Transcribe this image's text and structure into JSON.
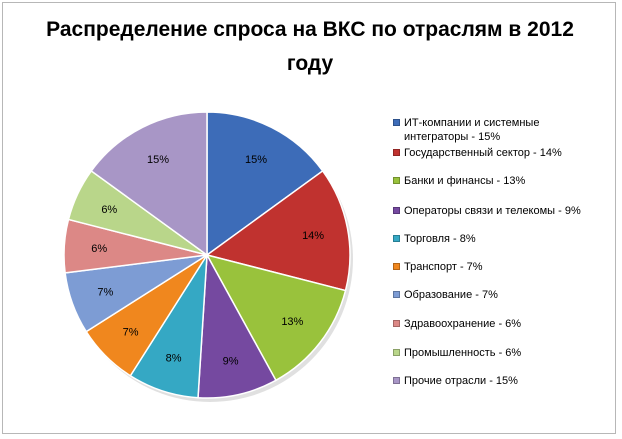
{
  "chart_data": {
    "type": "pie",
    "title": "Распределение спроса на ВКС по отраслям в 2012 году",
    "legend_position": "right",
    "slices": [
      {
        "legend": "ИТ-компании и системные интеграторы - 15%",
        "label": "15%",
        "value": 15,
        "color": "#3d6cb8"
      },
      {
        "legend": "Государственный сектор - 14%",
        "label": "14%",
        "value": 14,
        "color": "#c0322f"
      },
      {
        "legend": "Банки и финансы - 13%",
        "label": "13%",
        "value": 13,
        "color": "#99c23c"
      },
      {
        "legend": "Операторы связи и телекомы  - 9%",
        "label": "9%",
        "value": 9,
        "color": "#7549a0"
      },
      {
        "legend": "Торговля - 8%",
        "label": "8%",
        "value": 8,
        "color": "#35a8c4"
      },
      {
        "legend": "Транспорт - 7%",
        "label": "7%",
        "value": 7,
        "color": "#f0871e"
      },
      {
        "legend": "Образование - 7%",
        "label": "7%",
        "value": 7,
        "color": "#7d9cd4"
      },
      {
        "legend": "Здравоохранение - 6%",
        "label": "6%",
        "value": 6,
        "color": "#dc8886"
      },
      {
        "legend": "Промышленность - 6%",
        "label": "6%",
        "value": 6,
        "color": "#b9d68a"
      },
      {
        "legend": "Прочие отрасли - 15%",
        "label": "15%",
        "value": 15,
        "color": "#a896c6"
      }
    ]
  }
}
